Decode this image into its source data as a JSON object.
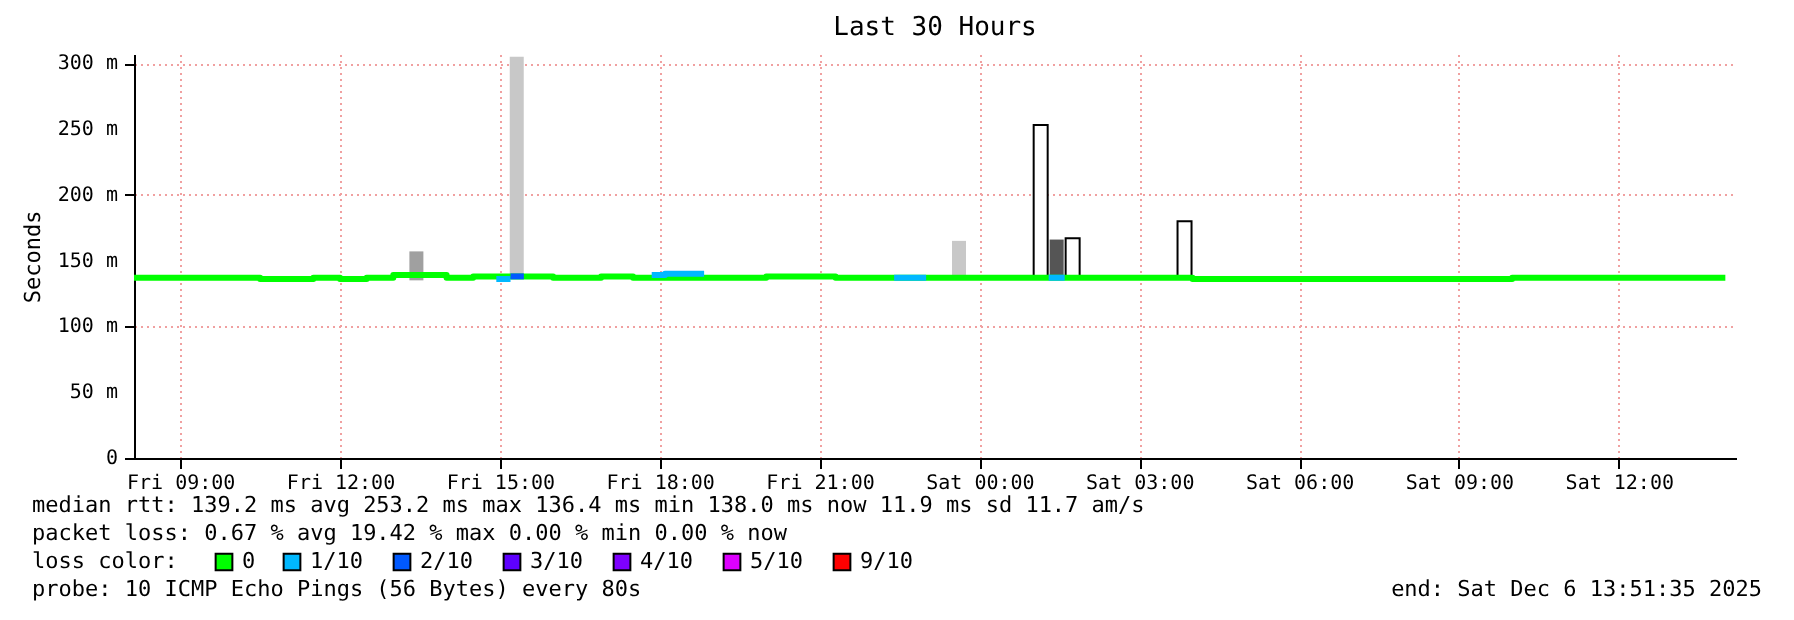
{
  "chart_data": {
    "type": "step",
    "title": "Last 30 Hours",
    "ylabel": "Seconds",
    "legend_title": "loss color:",
    "legend": "bottom",
    "xlim": [
      "2025-12-05T08:08",
      "2025-12-06T14:12"
    ],
    "ylim": [
      0,
      307
    ],
    "xticks": [
      {
        "value": "2025-12-05T09:00",
        "label": "Fri 09:00"
      },
      {
        "value": "2025-12-05T12:00",
        "label": "Fri 12:00"
      },
      {
        "value": "2025-12-05T15:00",
        "label": "Fri 15:00"
      },
      {
        "value": "2025-12-05T18:00",
        "label": "Fri 18:00"
      },
      {
        "value": "2025-12-05T21:00",
        "label": "Fri 21:00"
      },
      {
        "value": "2025-12-06T00:00",
        "label": "Sat 00:00"
      },
      {
        "value": "2025-12-06T03:00",
        "label": "Sat 03:00"
      },
      {
        "value": "2025-12-06T06:00",
        "label": "Sat 06:00"
      },
      {
        "value": "2025-12-06T09:00",
        "label": "Sat 09:00"
      },
      {
        "value": "2025-12-06T12:00",
        "label": "Sat 12:00"
      }
    ],
    "yticks": [
      0,
      {
        "value": 50,
        "label": "50 m"
      },
      {
        "value": 100,
        "label": "100 m"
      },
      {
        "value": 150,
        "label": "150 m"
      },
      {
        "value": 200,
        "label": "200 m"
      },
      {
        "value": 250,
        "label": "250 m"
      },
      {
        "value": 300,
        "label": "300 m"
      }
    ],
    "grid": true,
    "series": [
      {
        "type": "bar",
        "x": [
          "2025-12-05T13:26",
          "2025-12-05T15:19",
          "2025-12-05T23:37",
          "2025-12-06T01:09",
          "2025-12-06T01:27",
          "2025-12-06T01:45",
          "2025-12-06T03:51"
        ],
        "base": [
          135,
          137,
          137,
          137,
          137,
          137,
          137
        ],
        "values": [
          22,
          168,
          28,
          116,
          29,
          30,
          43
        ],
        "colors": [
          "#a0a0a0",
          "#c8c8c8",
          "#c8c8c8",
          "#ffffff",
          "#555555",
          "#ffffff",
          "#ffffff"
        ]
      },
      {
        "name": "0",
        "color": "#00ff00",
        "x": [
          "2025-12-05T08:08",
          "2025-12-05T09:30",
          "2025-12-05T10:30",
          "2025-12-05T11:30",
          "2025-12-05T12:00",
          "2025-12-05T12:30",
          "2025-12-05T13:00",
          "2025-12-05T13:36",
          "2025-12-05T14:00",
          "2025-12-05T14:30",
          "2025-12-05T15:27",
          "2025-12-05T16:00",
          "2025-12-05T16:54",
          "2025-12-05T17:30",
          "2025-12-05T18:50",
          "2025-12-05T19:30",
          "2025-12-05T20:00",
          "2025-12-05T20:36",
          "2025-12-05T21:18",
          "2025-12-05T23:00",
          "2025-12-06T01:36",
          "2025-12-06T04:00",
          "2025-12-06T05:30",
          "2025-12-06T07:00",
          "2025-12-06T08:30",
          "2025-12-06T10:00",
          "2025-12-06T14:00"
        ],
        "values": [
          137,
          137,
          136,
          137,
          136,
          137,
          139,
          139,
          137,
          138,
          138,
          137,
          138,
          137,
          137,
          137,
          138,
          138,
          137,
          137,
          137,
          136,
          136,
          136,
          136,
          137,
          137
        ]
      },
      {
        "name": "1/10",
        "color": "#00b8ff",
        "x": [
          "2025-12-05T14:56",
          "2025-12-05T15:12"
        ],
        "values": [
          136,
          136
        ]
      },
      {
        "color": "#00b8ff",
        "x": [
          "2025-12-05T17:51",
          "2025-12-05T18:06",
          "2025-12-05T18:50"
        ],
        "values": [
          139,
          140,
          140
        ]
      },
      {
        "color": "#00b8ff",
        "x": [
          "2025-12-05T22:24",
          "2025-12-05T23:00"
        ],
        "values": [
          137,
          137
        ]
      },
      {
        "color": "#00b8ff",
        "x": [
          "2025-12-06T01:18",
          "2025-12-06T01:36"
        ],
        "values": [
          137,
          137
        ]
      },
      {
        "name": "2/10",
        "color": "#0059ff",
        "x": [
          "2025-12-05T15:12",
          "2025-12-05T15:27"
        ],
        "values": [
          138,
          138
        ]
      },
      {
        "name": "3/10",
        "color": "#5e00ff"
      },
      {
        "name": "4/10",
        "color": "#7e00ff"
      },
      {
        "name": "5/10",
        "color": "#dd00ff"
      },
      {
        "name": "9/10",
        "color": "#ff0000"
      }
    ],
    "annotations": [
      "median rtt:  139.2 ms avg  253.2 ms max  136.4 ms min  138.0 ms now  11.9 ms sd  11.7   am/s",
      "packet loss: 0.67 % avg  19.42 % max  0.00 % min  0.00 % now",
      "probe:       10 ICMP Echo Pings (56 Bytes) every 80s",
      "end: Sat Dec  6 13:51:35 2025"
    ]
  }
}
